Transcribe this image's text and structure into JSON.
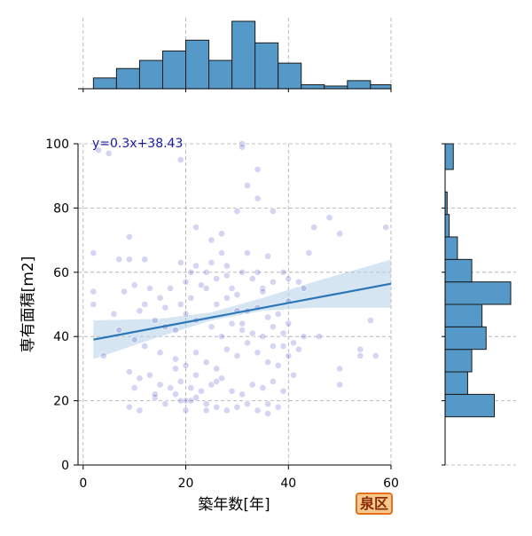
{
  "chart_data": {
    "type": "scatter",
    "xlabel": "築年数[年]",
    "ylabel": "専有面積[m2]",
    "xlim": [
      -1,
      60
    ],
    "ylim": [
      0,
      100
    ],
    "xticks": [
      0,
      20,
      40,
      60
    ],
    "yticks": [
      0,
      20,
      40,
      60,
      80,
      100
    ],
    "grid": true,
    "annotation": "y=0.3x+38.43",
    "badge": "泉区",
    "colors": {
      "points": "#3c3cc8",
      "regression_line": "#2a77b8",
      "confidence_band": "#b5d0e8",
      "histogram_fill": "#5499c7",
      "annotation_text": "#1a1aa8",
      "badge_fill": "#f7c98f",
      "badge_border": "#e8701a",
      "badge_text": "#8a2a00"
    },
    "regression": {
      "slope": 0.3,
      "intercept": 38.43,
      "x_range": [
        2,
        60
      ],
      "band_lower": [
        [
          2,
          33
        ],
        [
          15,
          40
        ],
        [
          25,
          45
        ],
        [
          35,
          48
        ],
        [
          45,
          49
        ],
        [
          60,
          49
        ]
      ],
      "band_upper": [
        [
          2,
          45
        ],
        [
          15,
          45.5
        ],
        [
          25,
          47.5
        ],
        [
          35,
          52
        ],
        [
          45,
          57
        ],
        [
          60,
          64
        ]
      ]
    },
    "points": [
      [
        3,
        98
      ],
      [
        5,
        97
      ],
      [
        31,
        100
      ],
      [
        34,
        92
      ],
      [
        19,
        95
      ],
      [
        31,
        99
      ],
      [
        32,
        87
      ],
      [
        34,
        83
      ],
      [
        30,
        79
      ],
      [
        37,
        79
      ],
      [
        48,
        77
      ],
      [
        45,
        74
      ],
      [
        50,
        72
      ],
      [
        59,
        74
      ],
      [
        22,
        74
      ],
      [
        27,
        72
      ],
      [
        25,
        70
      ],
      [
        9,
        71
      ],
      [
        25,
        63
      ],
      [
        27,
        66
      ],
      [
        32,
        66
      ],
      [
        36,
        65
      ],
      [
        44,
        66
      ],
      [
        39,
        60
      ],
      [
        2,
        66
      ],
      [
        7,
        64
      ],
      [
        9,
        64
      ],
      [
        12,
        64
      ],
      [
        19,
        63
      ],
      [
        21,
        60
      ],
      [
        22,
        62
      ],
      [
        24,
        60
      ],
      [
        26,
        58
      ],
      [
        28,
        59
      ],
      [
        29,
        55
      ],
      [
        31,
        60
      ],
      [
        33,
        58
      ],
      [
        35,
        55
      ],
      [
        37,
        57
      ],
      [
        40,
        58
      ],
      [
        42,
        57
      ],
      [
        43,
        55
      ],
      [
        2,
        54
      ],
      [
        8,
        54
      ],
      [
        10,
        56
      ],
      [
        13,
        55
      ],
      [
        15,
        52
      ],
      [
        17,
        55
      ],
      [
        19,
        50
      ],
      [
        21,
        52
      ],
      [
        23,
        56
      ],
      [
        26,
        50
      ],
      [
        28,
        52
      ],
      [
        30,
        53
      ],
      [
        32,
        48
      ],
      [
        34,
        49
      ],
      [
        36,
        46
      ],
      [
        38,
        47
      ],
      [
        40,
        51
      ],
      [
        2,
        50
      ],
      [
        6,
        47
      ],
      [
        11,
        48
      ],
      [
        14,
        45
      ],
      [
        16,
        43
      ],
      [
        18,
        42
      ],
      [
        20,
        47
      ],
      [
        22,
        45
      ],
      [
        25,
        43
      ],
      [
        27,
        40
      ],
      [
        29,
        44
      ],
      [
        31,
        42
      ],
      [
        33,
        41
      ],
      [
        35,
        40
      ],
      [
        37,
        43
      ],
      [
        39,
        41
      ],
      [
        41,
        38
      ],
      [
        43,
        40
      ],
      [
        46,
        40
      ],
      [
        56,
        45
      ],
      [
        7,
        42
      ],
      [
        10,
        39
      ],
      [
        12,
        37
      ],
      [
        15,
        35
      ],
      [
        18,
        33
      ],
      [
        20,
        31
      ],
      [
        22,
        35
      ],
      [
        24,
        32
      ],
      [
        26,
        30
      ],
      [
        28,
        36
      ],
      [
        30,
        34
      ],
      [
        32,
        38
      ],
      [
        34,
        35
      ],
      [
        36,
        32
      ],
      [
        38,
        31
      ],
      [
        40,
        34
      ],
      [
        42,
        36
      ],
      [
        54,
        36
      ],
      [
        54,
        34
      ],
      [
        50,
        30
      ],
      [
        57,
        34
      ],
      [
        4,
        34
      ],
      [
        9,
        29
      ],
      [
        11,
        27
      ],
      [
        13,
        28
      ],
      [
        15,
        25
      ],
      [
        17,
        24
      ],
      [
        19,
        26
      ],
      [
        21,
        24
      ],
      [
        23,
        23
      ],
      [
        25,
        25
      ],
      [
        27,
        27
      ],
      [
        29,
        23
      ],
      [
        31,
        22
      ],
      [
        33,
        25
      ],
      [
        35,
        24
      ],
      [
        37,
        26
      ],
      [
        39,
        23
      ],
      [
        41,
        28
      ],
      [
        50,
        25
      ],
      [
        10,
        24
      ],
      [
        14,
        21
      ],
      [
        16,
        19
      ],
      [
        18,
        22
      ],
      [
        20,
        20
      ],
      [
        22,
        21
      ],
      [
        24,
        19
      ],
      [
        26,
        18
      ],
      [
        28,
        17
      ],
      [
        30,
        18
      ],
      [
        32,
        19
      ],
      [
        34,
        17
      ],
      [
        36,
        16
      ],
      [
        38,
        18
      ],
      [
        9,
        18
      ],
      [
        11,
        17
      ],
      [
        20,
        17
      ],
      [
        24,
        17
      ],
      [
        19,
        20
      ],
      [
        21,
        20
      ],
      [
        14,
        22
      ],
      [
        36,
        19
      ],
      [
        18,
        30
      ],
      [
        22,
        28
      ],
      [
        26,
        26
      ],
      [
        30,
        48
      ],
      [
        24,
        55
      ],
      [
        20,
        57
      ],
      [
        28,
        62
      ],
      [
        40,
        44
      ],
      [
        16,
        49
      ],
      [
        12,
        50
      ],
      [
        34,
        60
      ],
      [
        35,
        54
      ],
      [
        31,
        44
      ],
      [
        37,
        37
      ],
      [
        39,
        37
      ]
    ],
    "top_histogram": {
      "bins": [
        [
          2,
          6.5
        ],
        [
          6.5,
          11
        ],
        [
          11,
          15.5
        ],
        [
          15.5,
          20
        ],
        [
          20,
          24.5
        ],
        [
          24.5,
          29
        ],
        [
          29,
          33.5
        ],
        [
          33.5,
          38
        ],
        [
          38,
          42.5
        ],
        [
          42.5,
          47
        ],
        [
          47,
          51.5
        ],
        [
          51.5,
          56
        ],
        [
          56,
          60
        ]
      ],
      "counts": [
        8,
        15,
        21,
        28,
        36,
        21,
        50,
        34,
        19,
        3,
        2,
        6,
        3
      ]
    },
    "right_histogram": {
      "bins": [
        [
          15,
          22
        ],
        [
          22,
          29
        ],
        [
          29,
          36
        ],
        [
          36,
          43
        ],
        [
          43,
          50
        ],
        [
          50,
          57
        ],
        [
          57,
          64
        ],
        [
          64,
          71
        ],
        [
          71,
          78
        ],
        [
          78,
          85
        ],
        [
          85,
          92
        ],
        [
          92,
          100
        ]
      ],
      "counts": [
        24,
        11,
        13,
        20,
        18,
        32,
        13,
        6,
        2,
        1,
        0,
        4
      ]
    }
  }
}
